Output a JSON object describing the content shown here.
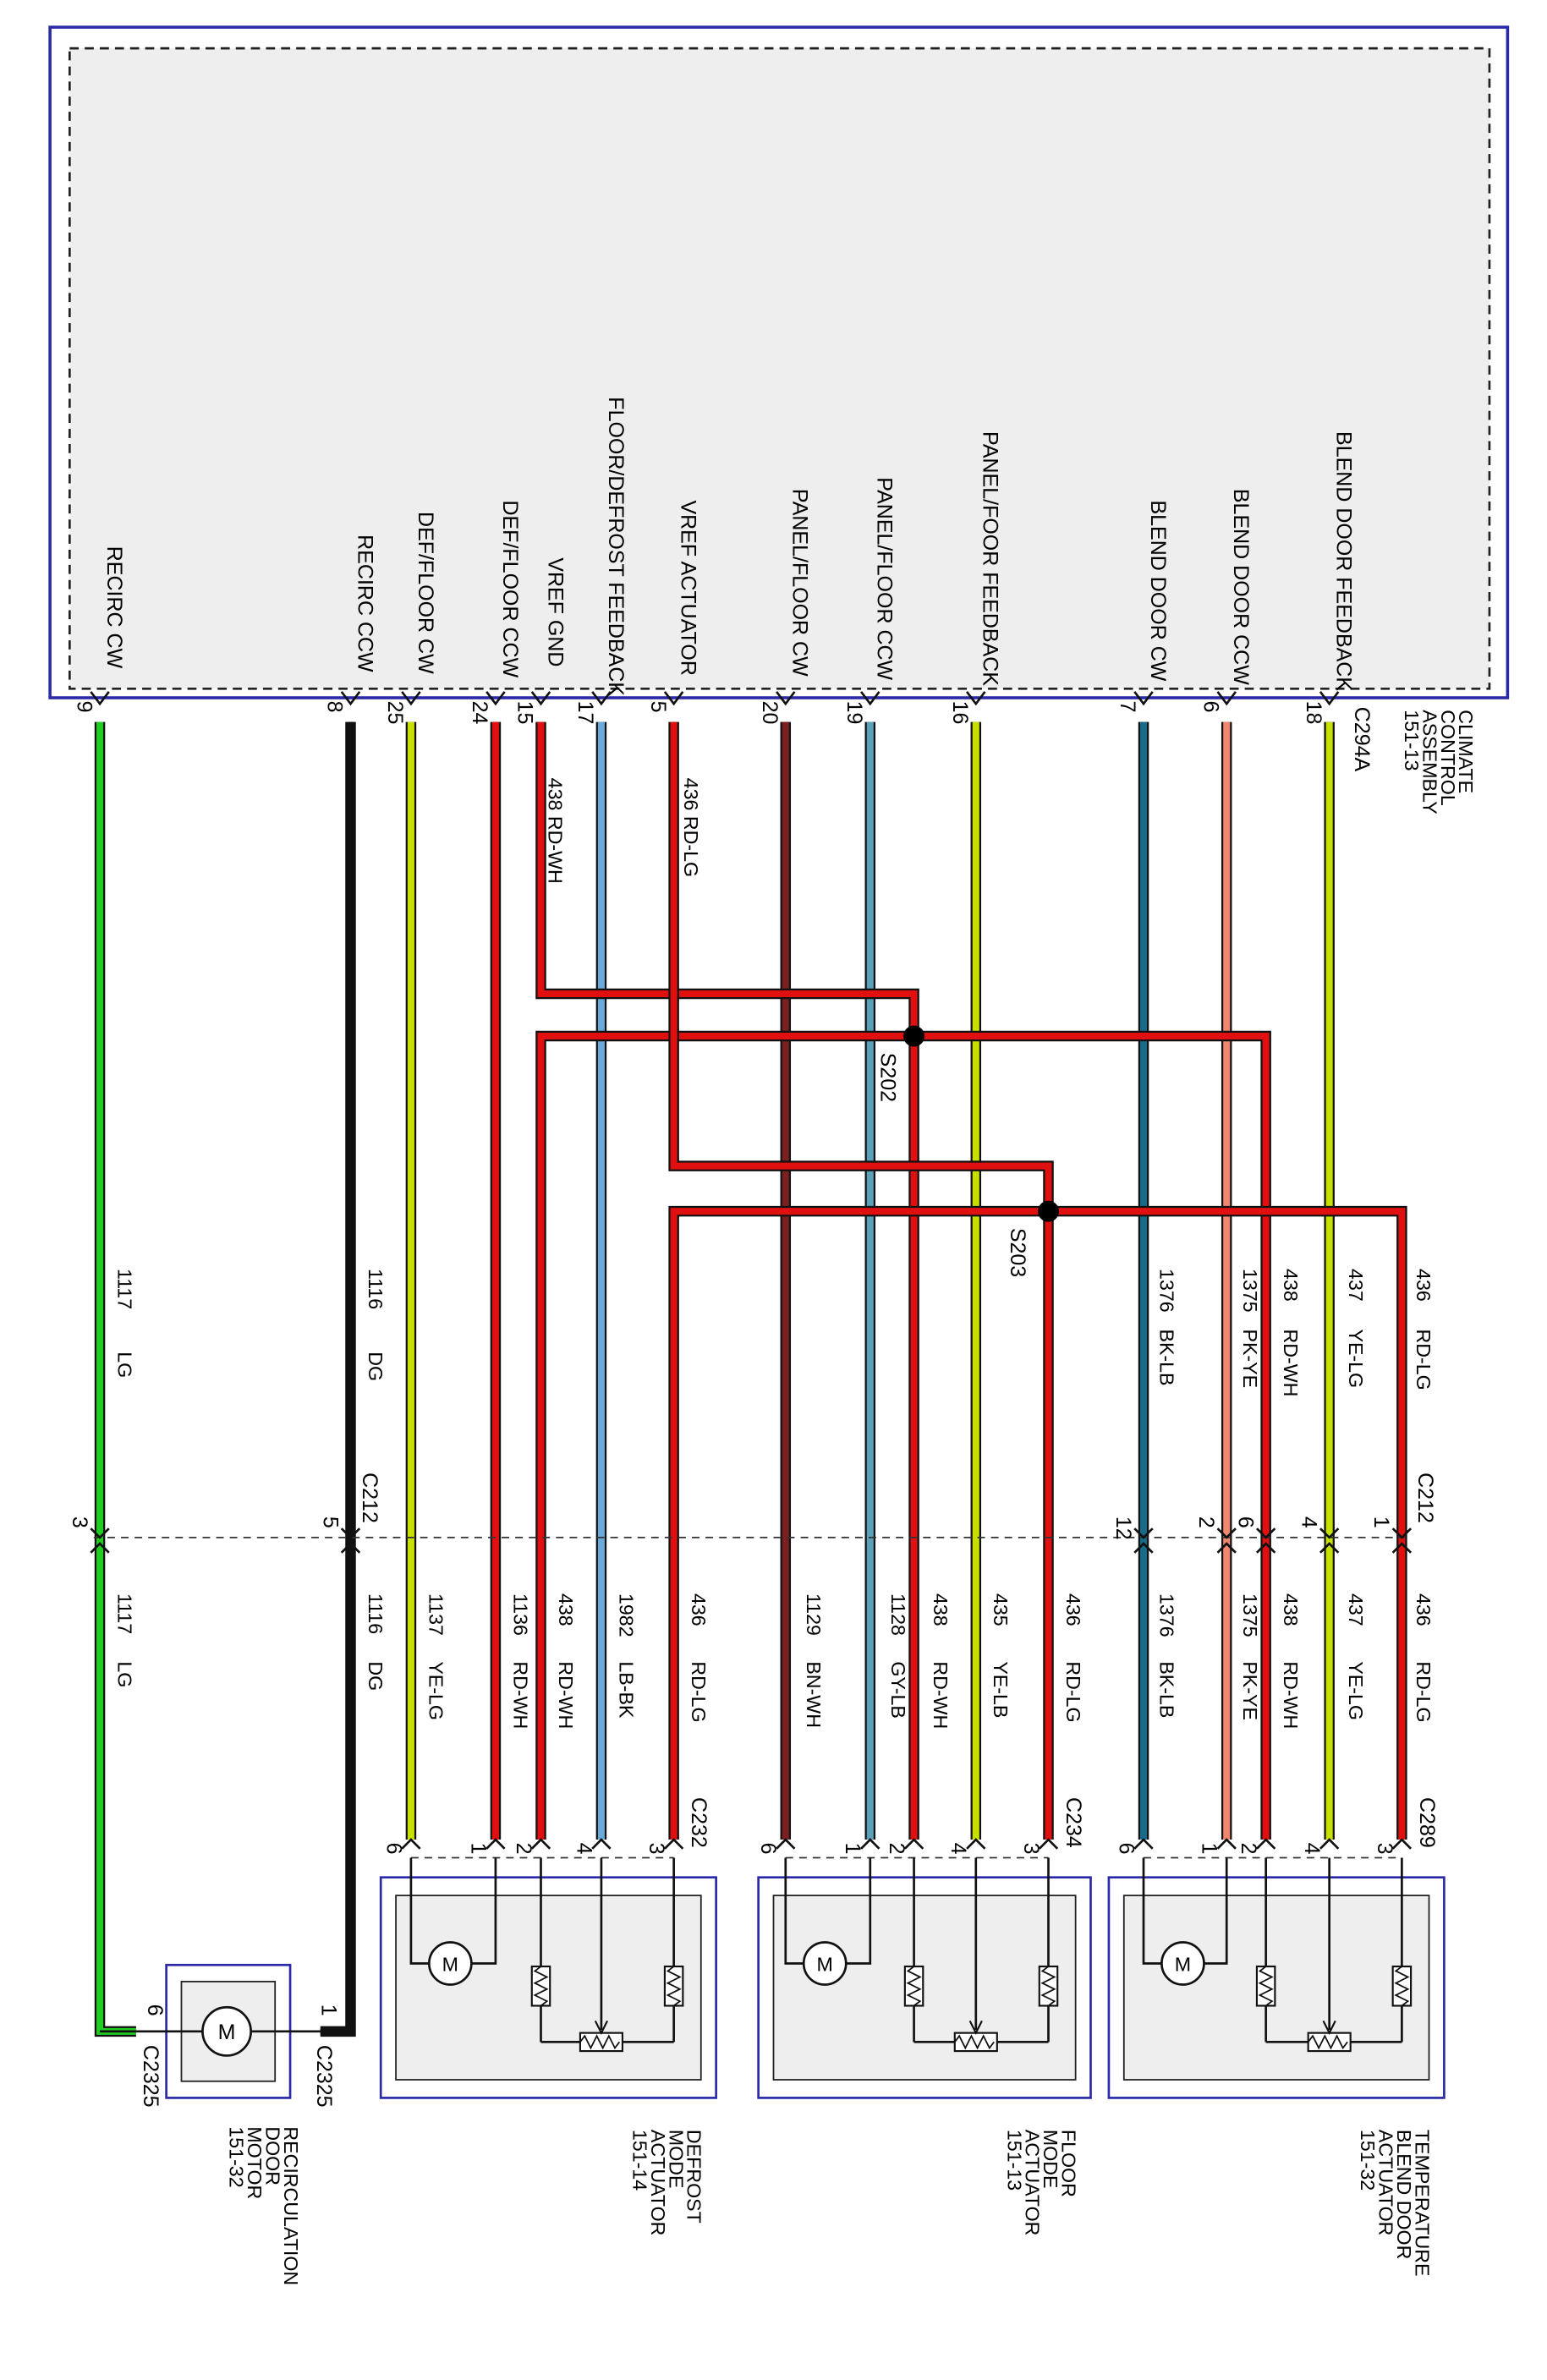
{
  "module": {
    "name_lines": [
      "CLIMATE",
      "CONTROL",
      "ASSEMBLY",
      "151-13"
    ],
    "connector": "C294A"
  },
  "terminals": [
    {
      "pin": "9",
      "signal": "RECIRC CW",
      "color": "#22cc22"
    },
    {
      "pin": "8",
      "signal": "RECIRC CCW",
      "color": "#111111"
    },
    {
      "pin": "25",
      "signal": "DEF/FLOOR CW",
      "color": "#c8e000"
    },
    {
      "pin": "24",
      "signal": "DEF/FLOOR CCW",
      "color": "#e01010"
    },
    {
      "pin": "15",
      "signal": "VREF GND",
      "color": "#e01010"
    },
    {
      "pin": "17",
      "signal": "FLOOR/DEFROST FEEDBACK",
      "color": "#6aaad8"
    },
    {
      "pin": "5",
      "signal": "VREF ACTUATOR",
      "color": "#e01010"
    },
    {
      "pin": "20",
      "signal": "PANEL/FLOOR CW",
      "color": "#7a2020"
    },
    {
      "pin": "19",
      "signal": "PANEL/FLOOR CCW",
      "color": "#1a1a1a"
    },
    {
      "pin": "16",
      "signal": "PANEL/FOOR FEEDBACK",
      "color": "#c8e000"
    },
    {
      "pin": "7",
      "signal": "BLEND DOOR CW",
      "color": "#1a1a1a"
    },
    {
      "pin": "6",
      "signal": "BLEND DOOR CCW",
      "color": "#f08870"
    },
    {
      "pin": "18",
      "signal": "BLEND DOOR FEEDBACK",
      "color": "#c8e000"
    }
  ],
  "upper_wire_labels": {
    "w438a": "438  RD-WH",
    "w436a": "436  RD-LG"
  },
  "splices": [
    "S202",
    "S203"
  ],
  "c212": {
    "name": "C212",
    "name2": "C212",
    "right_labels": [
      {
        "code": "436",
        "color": "RD-LG"
      },
      {
        "code": "437",
        "color": "YE-LG"
      },
      {
        "code": "438",
        "color": "RD-WH"
      },
      {
        "code": "1375",
        "color": "PK-YE"
      },
      {
        "code": "1376",
        "color": "BK-LB"
      }
    ],
    "left_labels": [
      {
        "code": "1116",
        "color": "DG"
      },
      {
        "code": "1117",
        "color": "LG"
      }
    ],
    "pins": [
      "1",
      "4",
      "6",
      "2",
      "12",
      "5",
      "3"
    ]
  },
  "lower_labels": [
    {
      "code": "1117",
      "color": "LG"
    },
    {
      "code": "1116",
      "color": "DG"
    },
    {
      "code": "1137",
      "color": "YE-LG"
    },
    {
      "code": "1136",
      "color": "RD-WH"
    },
    {
      "code": "438",
      "color": "RD-WH"
    },
    {
      "code": "1982",
      "color": "LB-BK"
    },
    {
      "code": "436",
      "color": "RD-LG"
    },
    {
      "code": "1129",
      "color": "BN-WH"
    },
    {
      "code": "1128",
      "color": "GY-LB"
    },
    {
      "code": "438",
      "color": "RD-WH"
    },
    {
      "code": "435",
      "color": "YE-LB"
    },
    {
      "code": "436",
      "color": "RD-LG"
    },
    {
      "code": "1376",
      "color": "BK-LB"
    },
    {
      "code": "1375",
      "color": "PK-YE"
    },
    {
      "code": "438",
      "color": "RD-WH"
    },
    {
      "code": "437",
      "color": "YE-LG"
    },
    {
      "code": "436",
      "color": "RD-LG"
    }
  ],
  "actuators": [
    {
      "name_lines": [
        "DEFROST",
        "MODE",
        "ACTUATOR",
        "151-14"
      ],
      "connector": "C232",
      "pins": [
        "6",
        "1",
        "2",
        "4",
        "3"
      ]
    },
    {
      "name_lines": [
        "FLOOR",
        "MODE",
        "ACTUATOR",
        "151-13"
      ],
      "connector": "C234",
      "pins": [
        "6",
        "1",
        "2",
        "4",
        "3"
      ]
    },
    {
      "name_lines": [
        "TEMPERATURE",
        "BLEND DOOR",
        "ACTUATOR",
        "151-32"
      ],
      "connector": "C289",
      "pins": [
        "6",
        "1",
        "2",
        "4",
        "3"
      ]
    }
  ],
  "recirc_motor": {
    "name_lines": [
      "RECIRCULATION",
      "DOOR",
      "MOTOR",
      "151-32"
    ],
    "connector_a": "C2325",
    "connector_b": "C2325",
    "pin_a": "6",
    "pin_b": "1",
    "motor_symbol": "M"
  }
}
